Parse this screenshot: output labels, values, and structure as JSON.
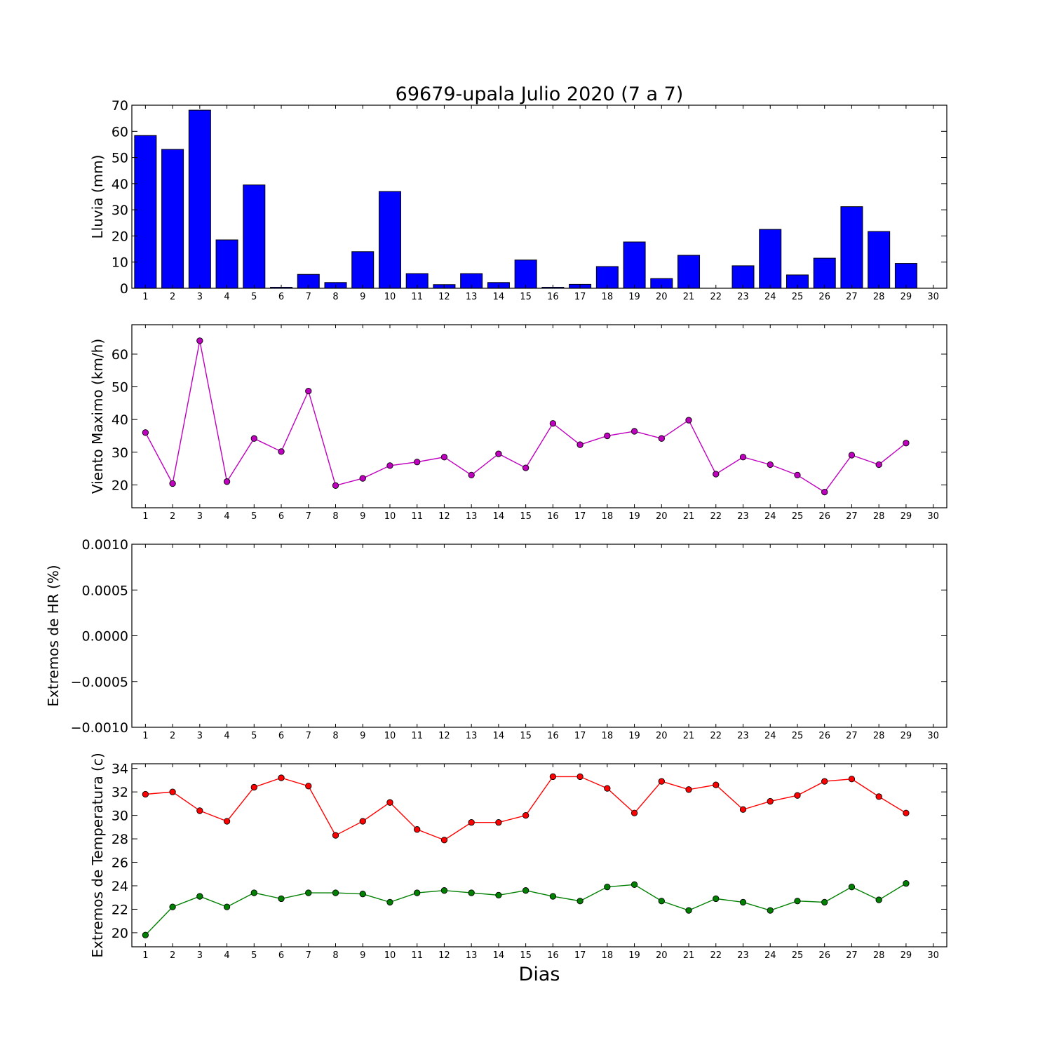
{
  "title": "69679-upala Julio 2020  (7 a 7)",
  "xlabel": "Dias",
  "days": [
    1,
    2,
    3,
    4,
    5,
    6,
    7,
    8,
    9,
    10,
    11,
    12,
    13,
    14,
    15,
    16,
    17,
    18,
    19,
    20,
    21,
    22,
    23,
    24,
    25,
    26,
    27,
    28,
    29,
    30
  ],
  "chart_data": [
    {
      "type": "bar",
      "ylabel": "Lluvia (mm)",
      "ylim": [
        0,
        70
      ],
      "yticks": [
        0,
        10,
        20,
        30,
        40,
        50,
        60,
        70
      ],
      "bar_color": "#0000ff",
      "x": [
        1,
        2,
        3,
        4,
        5,
        6,
        7,
        8,
        9,
        10,
        11,
        12,
        13,
        14,
        15,
        16,
        17,
        18,
        19,
        20,
        21,
        22,
        23,
        24,
        25,
        26,
        27,
        28,
        29
      ],
      "values": [
        58.4,
        53.1,
        68.1,
        18.5,
        39.5,
        0.4,
        5.3,
        2.2,
        14.0,
        37.0,
        5.6,
        1.4,
        5.6,
        2.2,
        10.8,
        0.4,
        1.5,
        8.3,
        17.7,
        3.7,
        12.6,
        0.0,
        8.6,
        22.5,
        5.1,
        11.5,
        31.2,
        21.7,
        9.5
      ]
    },
    {
      "type": "line",
      "ylabel": "Viento Maximo (km/h)",
      "ylim": [
        13,
        69
      ],
      "yticks": [
        20,
        30,
        40,
        50,
        60
      ],
      "line_color": "#bf00bf",
      "x": [
        1,
        2,
        3,
        4,
        5,
        6,
        7,
        8,
        9,
        10,
        11,
        12,
        13,
        14,
        15,
        16,
        17,
        18,
        19,
        20,
        21,
        22,
        23,
        24,
        25,
        26,
        27,
        28,
        29
      ],
      "values": [
        36.0,
        20.4,
        64.1,
        21.0,
        34.2,
        30.2,
        48.7,
        19.8,
        22.0,
        25.9,
        27.0,
        28.5,
        23.0,
        29.5,
        25.2,
        38.8,
        32.3,
        35.0,
        36.4,
        34.2,
        39.8,
        23.3,
        28.5,
        26.2,
        23.0,
        17.8,
        29.1,
        26.2,
        32.8
      ]
    },
    {
      "type": "line",
      "ylabel": "Extremos de HR (%)",
      "ylim": [
        -0.001,
        0.001
      ],
      "yticks": [
        -0.001,
        -0.0005,
        0.0,
        0.0005,
        0.001
      ],
      "ytick_labels": [
        "−0.0010",
        "−0.0005",
        "0.0000",
        "0.0005",
        "0.0010"
      ],
      "series": []
    },
    {
      "type": "line",
      "ylabel": "Extremos de Temperatura (c)",
      "ylim": [
        18.8,
        34.4
      ],
      "yticks": [
        20,
        22,
        24,
        26,
        28,
        30,
        32,
        34
      ],
      "x": [
        1,
        2,
        3,
        4,
        5,
        6,
        7,
        8,
        9,
        10,
        11,
        12,
        13,
        14,
        15,
        16,
        17,
        18,
        19,
        20,
        21,
        22,
        23,
        24,
        25,
        26,
        27,
        28,
        29
      ],
      "series": [
        {
          "color": "#ff0000",
          "values": [
            31.8,
            32.0,
            30.4,
            29.5,
            32.4,
            33.2,
            32.5,
            28.3,
            29.5,
            31.1,
            28.8,
            27.9,
            29.4,
            29.4,
            30.0,
            33.3,
            33.3,
            32.3,
            30.2,
            32.9,
            32.2,
            32.6,
            30.5,
            31.2,
            31.7,
            32.9,
            33.1,
            31.6,
            30.2
          ]
        },
        {
          "color": "#008000",
          "values": [
            19.8,
            22.2,
            23.1,
            22.2,
            23.4,
            22.9,
            23.4,
            23.4,
            23.3,
            22.6,
            23.4,
            23.6,
            23.4,
            23.2,
            23.6,
            23.1,
            22.7,
            23.9,
            24.1,
            22.7,
            21.9,
            22.9,
            22.6,
            21.9,
            22.7,
            22.6,
            23.9,
            22.8,
            24.2
          ]
        }
      ]
    }
  ]
}
